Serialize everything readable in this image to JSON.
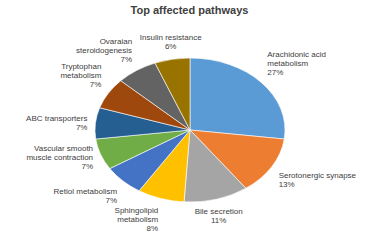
{
  "chart_data": {
    "type": "pie",
    "title": "Top affected pathways",
    "categories": [
      "Arachidonic acid metabolism",
      "Serotonergic synapse",
      "Bile secretion",
      "Sphingolipid metabolism",
      "Retiol metabolism",
      "Vascular smooth muscle contraction",
      "ABC transporters",
      "Tryptophan metabolism",
      "Ovaraian steroidogenesis",
      "Insulin resistance"
    ],
    "values": [
      27,
      13,
      11,
      8,
      7,
      7,
      7,
      7,
      7,
      6
    ],
    "value_labels": [
      "27%",
      "13%",
      "11%",
      "8%",
      "7%",
      "7%",
      "7%",
      "7%",
      "7%",
      "6%"
    ],
    "colors": [
      "#5b9bd5",
      "#ed7d31",
      "#a5a5a5",
      "#ffc000",
      "#4472c4",
      "#70ad47",
      "#255e91",
      "#9e480e",
      "#636363",
      "#997300"
    ],
    "data_labels": true
  }
}
